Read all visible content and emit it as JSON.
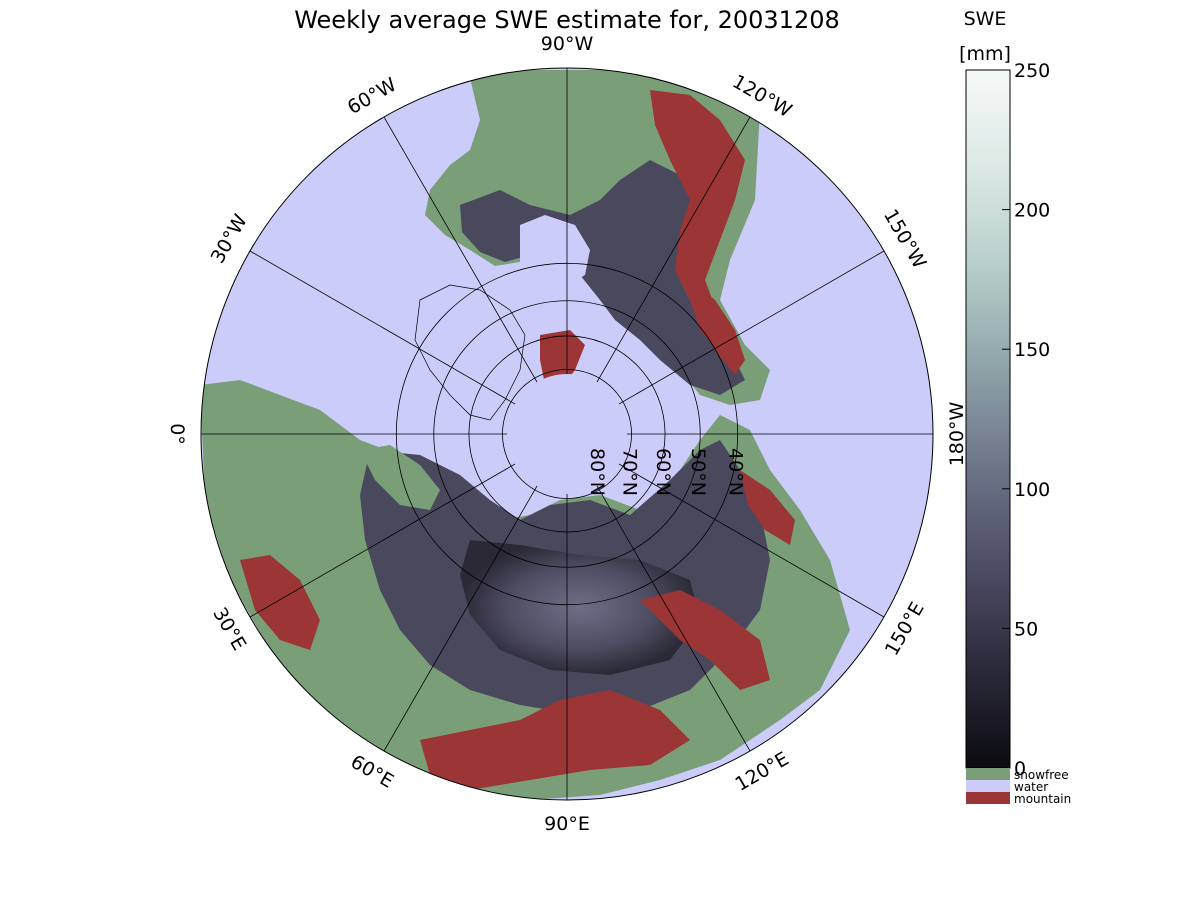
{
  "title": "Weekly average SWE estimate for, 20031208",
  "colorbar": {
    "label_line1": "SWE",
    "label_line2": "[mm]",
    "ticks": [
      0,
      50,
      100,
      150,
      200,
      250
    ],
    "ticks_text": [
      "0",
      "50",
      "100",
      "150",
      "200",
      "250"
    ],
    "range": [
      0,
      250
    ],
    "gradient_stops": [
      "#0b0b10",
      "#2b2a3a",
      "#4d4c66",
      "#6c7388",
      "#8ea3a8",
      "#b5cdc9",
      "#dbe8e5",
      "#f6f9f8"
    ],
    "categories": [
      {
        "label": "snowfree",
        "color": "#7a9e78"
      },
      {
        "label": "water",
        "color": "#ccccfa"
      },
      {
        "label": "mountain",
        "color": "#9c3535"
      }
    ]
  },
  "map": {
    "projection": "north polar stereographic",
    "ocean_color": "#ccccfa",
    "snowfree_color": "#7a9e78",
    "mountain_color": "#9c3535",
    "snow_color": "#4a485c",
    "longitude_labels": [
      {
        "text": "90°W",
        "lon": -90
      },
      {
        "text": "120°W",
        "lon": -120
      },
      {
        "text": "150°W",
        "lon": -150
      },
      {
        "text": "180°W",
        "lon": 180
      },
      {
        "text": "150°E",
        "lon": 150
      },
      {
        "text": "120°E",
        "lon": 120
      },
      {
        "text": "90°E",
        "lon": 90
      },
      {
        "text": "60°E",
        "lon": 60
      },
      {
        "text": "30°E",
        "lon": 30
      },
      {
        "text": "0°",
        "lon": 0
      },
      {
        "text": "30°W",
        "lon": -30
      },
      {
        "text": "60°W",
        "lon": -60
      }
    ],
    "latitude_labels": [
      {
        "text": "80°N",
        "lat": 80
      },
      {
        "text": "70°N",
        "lat": 70
      },
      {
        "text": "60°N",
        "lat": 60
      },
      {
        "text": "50°N",
        "lat": 50
      },
      {
        "text": "40°N",
        "lat": 40
      }
    ]
  }
}
